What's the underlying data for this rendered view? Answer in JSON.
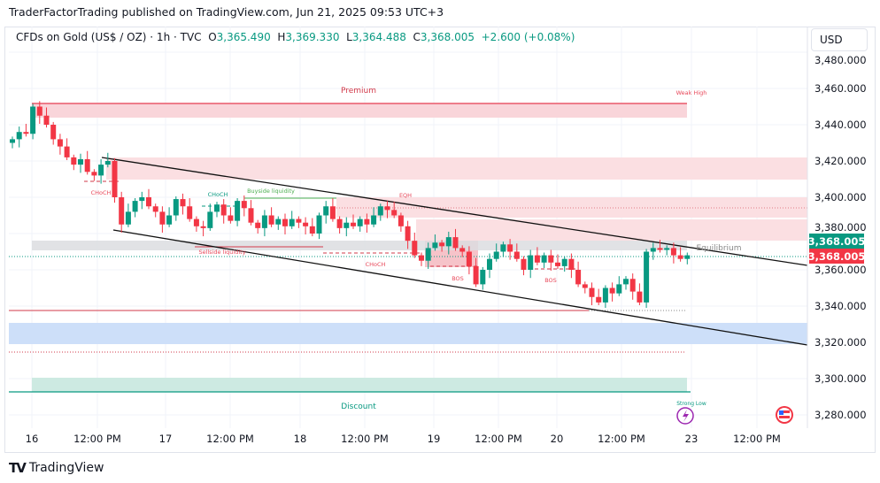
{
  "header": {
    "publisher_line": "TraderFactorTrading published on TradingView.com, Jun 21, 2025 09:53 UTC+3"
  },
  "legend": {
    "symbol": "CFDs on Gold (US$ / OZ) · 1h · TVC",
    "o_label": "O",
    "o": "3,365.490",
    "h_label": "H",
    "h": "3,369.330",
    "l_label": "L",
    "l": "3,364.488",
    "c_label": "C",
    "c": "3,368.005",
    "change": "+2.600 (+0.08%)"
  },
  "currency_button": "USD",
  "price_axis": {
    "labels": [
      "3,480.000",
      "3,460.000",
      "3,440.000",
      "3,420.000",
      "3,400.000",
      "3,380.000",
      "3,360.000",
      "3,340.000",
      "3,320.000",
      "3,300.000",
      "3,280.000"
    ],
    "values": [
      3480,
      3460,
      3440,
      3420,
      3400,
      3380,
      3360,
      3340,
      3320,
      3300,
      3280
    ],
    "last_price_green": "3,368.005",
    "last_price_red": "3,368.005"
  },
  "time_axis": {
    "labels": [
      "16",
      "12:00 PM",
      "17",
      "12:00 PM",
      "18",
      "12:00 PM",
      "19",
      "12:00 PM",
      "20",
      "12:00 PM",
      "23",
      "12:00 PM"
    ]
  },
  "annotations": {
    "premium": "Premium",
    "weak_high": "Weak High",
    "choch1": "CHoCH",
    "choch2": "CHoCH",
    "buyside": "Buyside liquidity",
    "eqh": "EQH",
    "sellside": "Sellside liquidity",
    "choch3": "CHoCH",
    "bos1": "BOS",
    "bos2": "BOS",
    "equilibrium": "Equilibrium",
    "discount": "Discount",
    "strong_low": "Strong Low"
  },
  "colors": {
    "up": "#089981",
    "down": "#f23645",
    "premium": "#f7c9cf",
    "discount": "#b2dfd4",
    "blue_zone": "#c9dcfb",
    "equilibrium": "#dcdde0"
  },
  "chart_data": {
    "type": "candlestick",
    "symbol": "XAUUSD 1h",
    "ylim": [
      3270,
      3485
    ],
    "closes": [
      3432,
      3436,
      3435,
      3450,
      3445,
      3440,
      3432,
      3428,
      3422,
      3418,
      3421,
      3414,
      3412,
      3418,
      3420,
      3400,
      3385,
      3392,
      3398,
      3400,
      3395,
      3392,
      3385,
      3390,
      3399,
      3395,
      3388,
      3384,
      3383,
      3392,
      3396,
      3390,
      3387,
      3398,
      3394,
      3386,
      3383,
      3390,
      3385,
      3388,
      3384,
      3388,
      3386,
      3384,
      3380,
      3390,
      3395,
      3388,
      3383,
      3386,
      3384,
      3388,
      3385,
      3390,
      3395,
      3393,
      3390,
      3384,
      3376,
      3368,
      3365,
      3372,
      3375,
      3373,
      3378,
      3372,
      3370,
      3362,
      3352,
      3360,
      3366,
      3370,
      3374,
      3370,
      3366,
      3360,
      3368,
      3364,
      3368,
      3364,
      3362,
      3366,
      3360,
      3352,
      3350,
      3345,
      3342,
      3350,
      3347,
      3352,
      3355,
      3348,
      3342,
      3370,
      3372,
      3371,
      3372,
      3368,
      3366,
      3368.005
    ]
  },
  "brand": "TradingView"
}
